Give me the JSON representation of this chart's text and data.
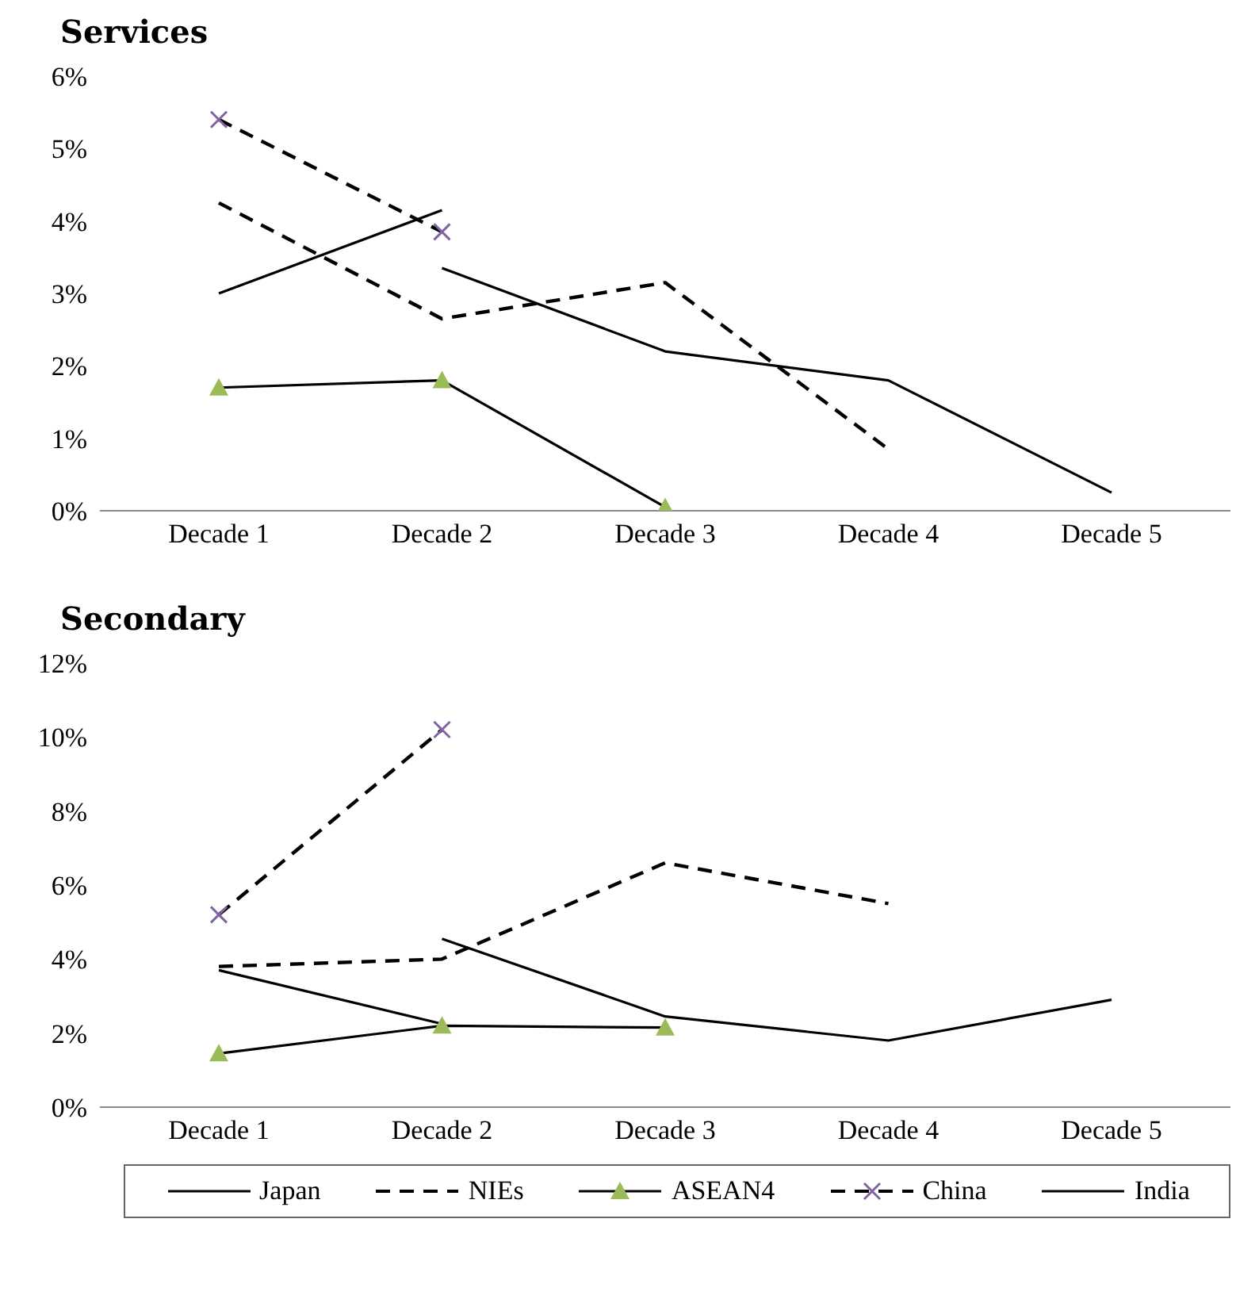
{
  "chart_data": [
    {
      "type": "line",
      "title": "Services",
      "categories": [
        "Decade 1",
        "Decade 2",
        "Decade 3",
        "Decade 4",
        "Decade 5"
      ],
      "ylim": [
        0,
        6
      ],
      "yticks": [
        {
          "value": 0,
          "label": "0%"
        },
        {
          "value": 1,
          "label": "1%"
        },
        {
          "value": 2,
          "label": "2%"
        },
        {
          "value": 3,
          "label": "3%"
        },
        {
          "value": 4,
          "label": "4%"
        },
        {
          "value": 5,
          "label": "5%"
        },
        {
          "value": 6,
          "label": "6%"
        }
      ],
      "grid": false,
      "legend": false,
      "series": [
        {
          "color": "#000000",
          "line_style": "solid",
          "marker": "none",
          "values": [
            null,
            3.35,
            2.2,
            1.8,
            0.25
          ]
        },
        {
          "color": "#000000",
          "line_style": "dashed",
          "marker": "none",
          "values": [
            4.25,
            2.65,
            3.15,
            0.85,
            null
          ]
        },
        {
          "color": "#000000",
          "line_style": "solid",
          "marker": "triangle",
          "colors": [
            "#9bbb59",
            "#9bbb59",
            "#9bbb59",
            null,
            null
          ],
          "values": [
            1.7,
            1.8,
            0.05,
            null,
            null
          ]
        },
        {
          "color": "#000000",
          "line_style": "dashed",
          "marker": "cross",
          "colors": [
            "#8064a2",
            "#8064a2",
            null,
            null,
            null
          ],
          "values": [
            5.4,
            3.85,
            null,
            null,
            null
          ]
        },
        {
          "color": "#000000",
          "line_style": "solid",
          "marker": "none",
          "values": [
            3.0,
            4.15,
            null,
            null,
            null
          ]
        }
      ]
    },
    {
      "type": "line",
      "title": "Secondary",
      "categories": [
        "Decade 1",
        "Decade 2",
        "Decade 3",
        "Decade 4",
        "Decade 5"
      ],
      "ylim": [
        0,
        12
      ],
      "yticks": [
        {
          "value": 0,
          "label": "0%"
        },
        {
          "value": 2,
          "label": "2%"
        },
        {
          "value": 4,
          "label": "4%"
        },
        {
          "value": 6,
          "label": "6%"
        },
        {
          "value": 8,
          "label": "8%"
        },
        {
          "value": 10,
          "label": "10%"
        },
        {
          "value": 12,
          "label": "12%"
        }
      ],
      "grid": false,
      "legend": "bottom",
      "series": [
        {
          "name": "Japan",
          "color": "#000000",
          "line_style": "solid",
          "marker": "none",
          "values": [
            null,
            4.55,
            2.45,
            1.8,
            2.9
          ]
        },
        {
          "name": "NIEs",
          "color": "#000000",
          "line_style": "dashed",
          "marker": "none",
          "values": [
            3.8,
            4.0,
            6.6,
            5.5,
            null
          ]
        },
        {
          "name": "ASEAN4",
          "color": "#000000",
          "line_style": "solid",
          "marker": "triangle",
          "colors": [
            "#9bbb59",
            "#9bbb59",
            "#9bbb59",
            null,
            null
          ],
          "values": [
            1.45,
            2.2,
            2.15,
            null,
            null
          ]
        },
        {
          "name": "China",
          "color": "#000000",
          "line_style": "dashed",
          "marker": "cross",
          "colors": [
            "#8064a2",
            "#8064a2",
            null,
            null,
            null
          ],
          "values": [
            5.2,
            10.2,
            null,
            null,
            null
          ]
        },
        {
          "name": "India",
          "color": "#000000",
          "line_style": "solid",
          "marker": "none",
          "values": [
            3.7,
            2.25,
            null,
            null,
            null
          ]
        }
      ]
    }
  ]
}
